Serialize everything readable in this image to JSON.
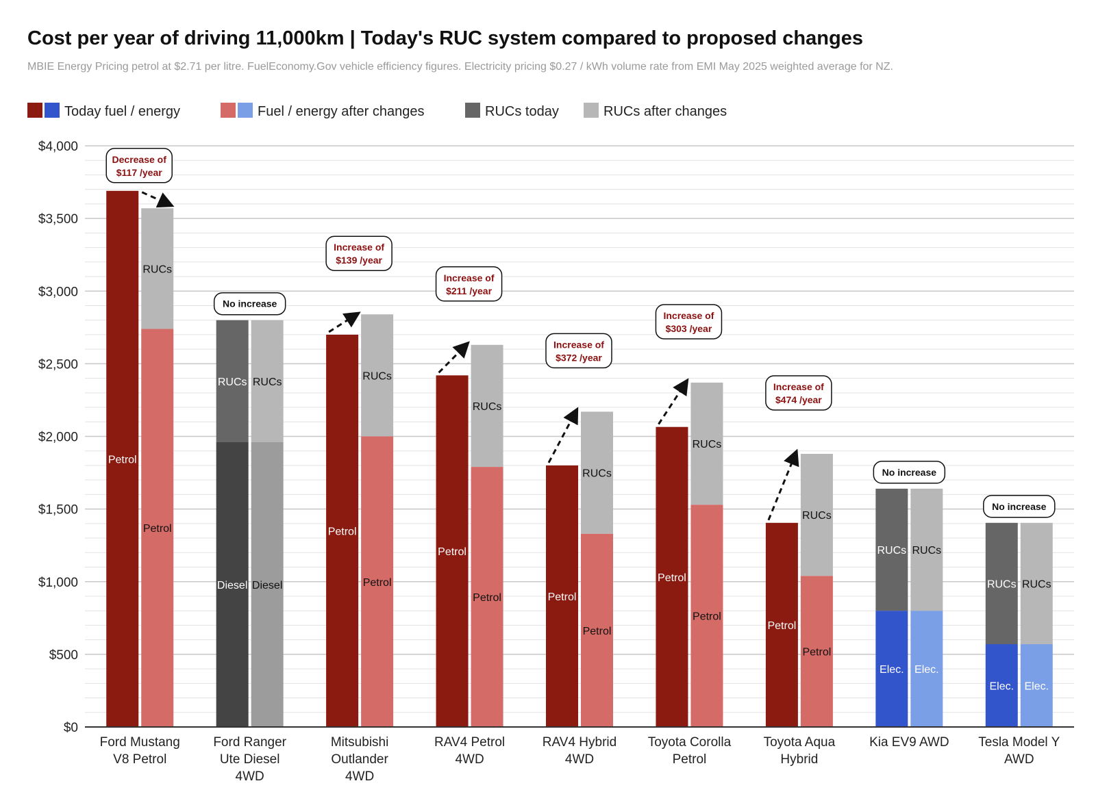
{
  "chart_data": {
    "type": "bar",
    "title": "Cost per year of driving 11,000km  |  Today's RUC system compared to proposed changes",
    "subtitle": "MBIE Energy Pricing petrol at $2.71 per litre. FuelEconomy.Gov vehicle efficiency figures. Electricity pricing $0.27 / kWh volume rate from EMI May 2025 weighted average for NZ.",
    "legend_position": "top-left",
    "legend": [
      {
        "label": "Today fuel / energy",
        "colors": [
          "#8b1a10",
          "#3355cc"
        ]
      },
      {
        "label": "Fuel / energy after changes",
        "colors": [
          "#d56b66",
          "#7b9fe6"
        ]
      },
      {
        "label": "RUCs today",
        "colors": [
          "#666666"
        ]
      },
      {
        "label": "RUCs after changes",
        "colors": [
          "#b7b7b7"
        ]
      }
    ],
    "ylim": [
      0,
      4000
    ],
    "y_ticks": [
      0,
      500,
      1000,
      1500,
      2000,
      2500,
      3000,
      3500,
      4000
    ],
    "y_tick_labels": [
      "$0",
      "$500",
      "$1,000",
      "$1,500",
      "$2,000",
      "$2,500",
      "$3,000",
      "$3,500",
      "$4,000"
    ],
    "grid": true,
    "colors": {
      "petrol_today": "#8b1a10",
      "petrol_after": "#d56b66",
      "elec_today": "#3355cc",
      "elec_after": "#7b9fe6",
      "diesel_today": "#444444",
      "diesel_after": "#9c9c9c",
      "ruc_today": "#666666",
      "ruc_after": "#b7b7b7",
      "annotation_text": "#8b0f0f"
    },
    "groups": [
      {
        "category": [
          "Ford Mustang",
          "V8 Petrol"
        ],
        "today": [
          {
            "label": "Petrol",
            "value": 3690,
            "color": "petrol_today"
          }
        ],
        "after": [
          {
            "label": "Petrol",
            "value": 2740,
            "color": "petrol_after"
          },
          {
            "label": "RUCs",
            "value": 830,
            "color": "ruc_after"
          }
        ],
        "annotation": {
          "lines": [
            "Decrease of",
            "$117 /year"
          ],
          "arrow": true
        }
      },
      {
        "category": [
          "Ford Ranger",
          "Ute Diesel",
          "4WD"
        ],
        "today": [
          {
            "label": "Diesel",
            "value": 1960,
            "color": "diesel_today"
          },
          {
            "label": "RUCs",
            "value": 840,
            "color": "ruc_today"
          }
        ],
        "after": [
          {
            "label": "Diesel",
            "value": 1960,
            "color": "diesel_after"
          },
          {
            "label": "RUCs",
            "value": 840,
            "color": "ruc_after"
          }
        ],
        "annotation": {
          "lines": [
            "No increase"
          ],
          "arrow": false
        }
      },
      {
        "category": [
          "Mitsubishi",
          "Outlander",
          "4WD"
        ],
        "today": [
          {
            "label": "Petrol",
            "value": 2700,
            "color": "petrol_today"
          }
        ],
        "after": [
          {
            "label": "Petrol",
            "value": 2000,
            "color": "petrol_after"
          },
          {
            "label": "RUCs",
            "value": 840,
            "color": "ruc_after"
          }
        ],
        "annotation": {
          "lines": [
            "Increase of",
            "$139 /year"
          ],
          "arrow": true
        }
      },
      {
        "category": [
          "RAV4 Petrol",
          "4WD"
        ],
        "today": [
          {
            "label": "Petrol",
            "value": 2420,
            "color": "petrol_today"
          }
        ],
        "after": [
          {
            "label": "Petrol",
            "value": 1790,
            "color": "petrol_after"
          },
          {
            "label": "RUCs",
            "value": 840,
            "color": "ruc_after"
          }
        ],
        "annotation": {
          "lines": [
            "Increase of",
            "$211 /year"
          ],
          "arrow": true
        }
      },
      {
        "category": [
          "RAV4 Hybrid",
          "4WD"
        ],
        "today": [
          {
            "label": "Petrol",
            "value": 1800,
            "color": "petrol_today"
          }
        ],
        "after": [
          {
            "label": "Petrol",
            "value": 1330,
            "color": "petrol_after"
          },
          {
            "label": "RUCs",
            "value": 840,
            "color": "ruc_after"
          }
        ],
        "annotation": {
          "lines": [
            "Increase of",
            "$372 /year"
          ],
          "arrow": true
        }
      },
      {
        "category": [
          "Toyota Corolla",
          "Petrol"
        ],
        "today": [
          {
            "label": "Petrol",
            "value": 2065,
            "color": "petrol_today"
          }
        ],
        "after": [
          {
            "label": "Petrol",
            "value": 1530,
            "color": "petrol_after"
          },
          {
            "label": "RUCs",
            "value": 840,
            "color": "ruc_after"
          }
        ],
        "annotation": {
          "lines": [
            "Increase of",
            "$303 /year"
          ],
          "arrow": true
        }
      },
      {
        "category": [
          "Toyota Aqua",
          "Hybrid"
        ],
        "today": [
          {
            "label": "Petrol",
            "value": 1405,
            "color": "petrol_today"
          }
        ],
        "after": [
          {
            "label": "Petrol",
            "value": 1040,
            "color": "petrol_after"
          },
          {
            "label": "RUCs",
            "value": 840,
            "color": "ruc_after"
          }
        ],
        "annotation": {
          "lines": [
            "Increase of",
            "$474 /year"
          ],
          "arrow": true
        }
      },
      {
        "category": [
          "Kia EV9 AWD"
        ],
        "today": [
          {
            "label": "Elec.",
            "value": 800,
            "color": "elec_today"
          },
          {
            "label": "RUCs",
            "value": 840,
            "color": "ruc_today"
          }
        ],
        "after": [
          {
            "label": "Elec.",
            "value": 800,
            "color": "elec_after"
          },
          {
            "label": "RUCs",
            "value": 840,
            "color": "ruc_after"
          }
        ],
        "annotation": {
          "lines": [
            "No increase"
          ],
          "arrow": false
        }
      },
      {
        "category": [
          "Tesla Model Y",
          "AWD"
        ],
        "today": [
          {
            "label": "Elec.",
            "value": 570,
            "color": "elec_today"
          },
          {
            "label": "RUCs",
            "value": 835,
            "color": "ruc_today"
          }
        ],
        "after": [
          {
            "label": "Elec.",
            "value": 570,
            "color": "elec_after"
          },
          {
            "label": "RUCs",
            "value": 835,
            "color": "ruc_after"
          }
        ],
        "annotation": {
          "lines": [
            "No increase"
          ],
          "arrow": false
        }
      }
    ]
  }
}
